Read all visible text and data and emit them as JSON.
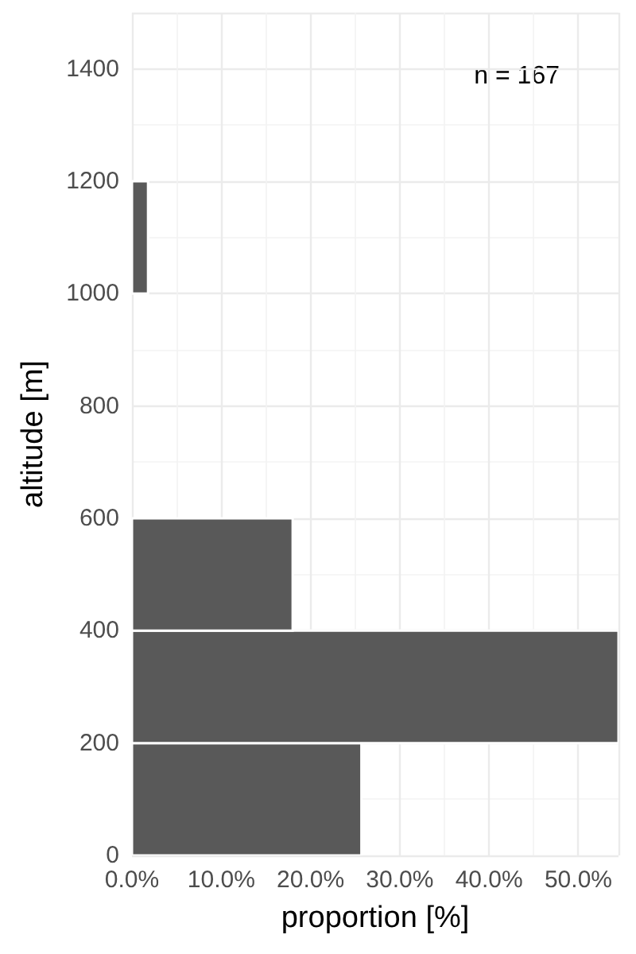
{
  "chart_data": {
    "type": "histogram",
    "orientation": "horizontal",
    "xlabel": "proportion [%]",
    "ylabel": "altitude [m]",
    "bins": [
      0,
      200,
      400,
      600,
      800,
      1000,
      1200
    ],
    "values": [
      25.7,
      54.5,
      18.0,
      0,
      0,
      1.8
    ],
    "color": "#595959",
    "xlim": [
      0,
      54.5
    ],
    "xticks": [
      {
        "value": 0,
        "label": "0.0%"
      },
      {
        "value": 10,
        "label": "10.0%"
      },
      {
        "value": 20,
        "label": "20.0%"
      },
      {
        "value": 30,
        "label": "30.0%"
      },
      {
        "value": 40,
        "label": "40.0%"
      },
      {
        "value": 50,
        "label": "50.0%"
      }
    ],
    "ylim": [
      0,
      1500
    ],
    "yticks": [
      0,
      200,
      400,
      600,
      800,
      1000,
      1200,
      1400
    ],
    "grid": true,
    "annotations": [
      "n = 167"
    ]
  }
}
